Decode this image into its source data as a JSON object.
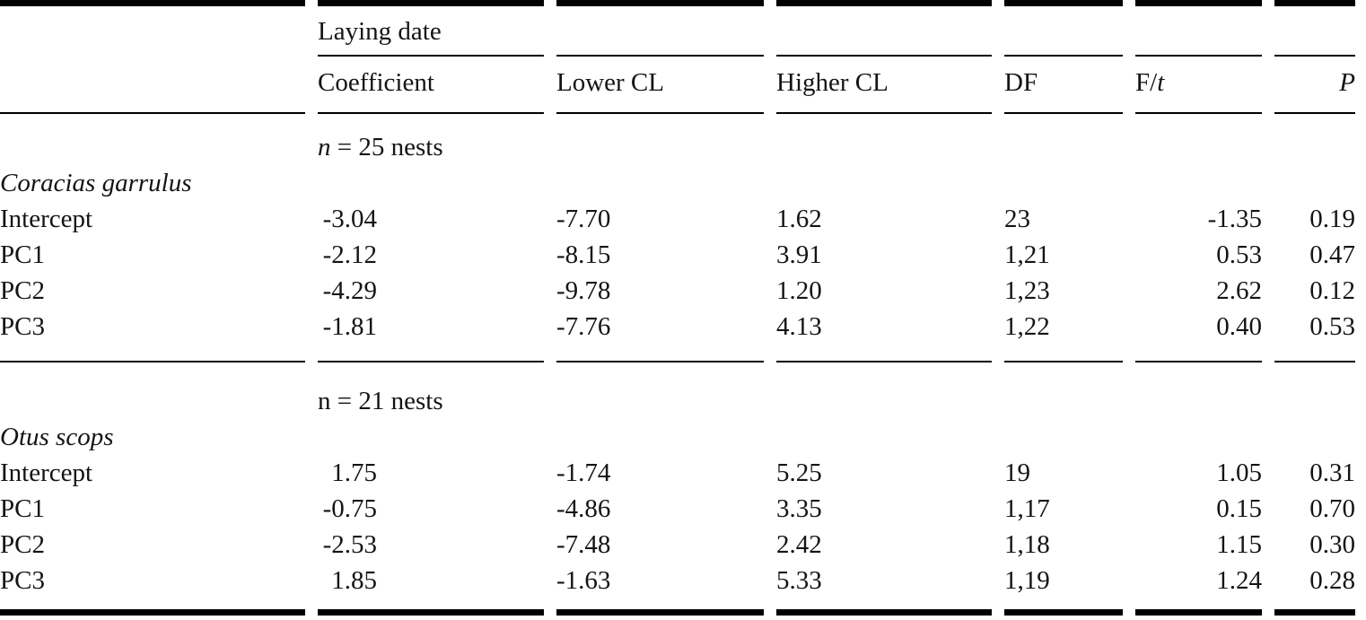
{
  "table": {
    "header": {
      "group": "Laying date",
      "coefficient": "Coefficient",
      "lower_cl": "Lower CL",
      "higher_cl": "Higher CL",
      "df": "DF",
      "ft_prefix": "F/",
      "ft_var": "t",
      "p": "P"
    },
    "sections": [
      {
        "note_var": "n",
        "note_rest": " = 25 nests",
        "species": "Coracias garrulus",
        "rows": [
          {
            "label": "Intercept",
            "coefficient": "-3.04",
            "lower_cl": "-7.70",
            "higher_cl": "1.62",
            "df": "23",
            "f_t": "-1.35",
            "p": "0.19"
          },
          {
            "label": "PC1",
            "coefficient": "-2.12",
            "lower_cl": "-8.15",
            "higher_cl": "3.91",
            "df": "1,21",
            "f_t": "0.53",
            "p": "0.47"
          },
          {
            "label": "PC2",
            "coefficient": "-4.29",
            "lower_cl": "-9.78",
            "higher_cl": "1.20",
            "df": "1,23",
            "f_t": "2.62",
            "p": "0.12"
          },
          {
            "label": "PC3",
            "coefficient": "-1.81",
            "lower_cl": "-7.76",
            "higher_cl": "4.13",
            "df": "1,22",
            "f_t": "0.40",
            "p": "0.53"
          }
        ]
      },
      {
        "note_var": "n",
        "note_rest": " = 21 nests",
        "species": "Otus scops",
        "rows": [
          {
            "label": "Intercept",
            "coefficient": "1.75",
            "lower_cl": "-1.74",
            "higher_cl": "5.25",
            "df": "19",
            "f_t": "1.05",
            "p": "0.31"
          },
          {
            "label": "PC1",
            "coefficient": "-0.75",
            "lower_cl": "-4.86",
            "higher_cl": "3.35",
            "df": "1,17",
            "f_t": "0.15",
            "p": "0.70"
          },
          {
            "label": "PC2",
            "coefficient": "-2.53",
            "lower_cl": "-7.48",
            "higher_cl": "2.42",
            "df": "1,18",
            "f_t": "1.15",
            "p": "0.30"
          },
          {
            "label": "PC3",
            "coefficient": "1.85",
            "lower_cl": "-1.63",
            "higher_cl": "5.33",
            "df": "1,19",
            "f_t": "1.24",
            "p": "0.28"
          }
        ]
      }
    ]
  }
}
